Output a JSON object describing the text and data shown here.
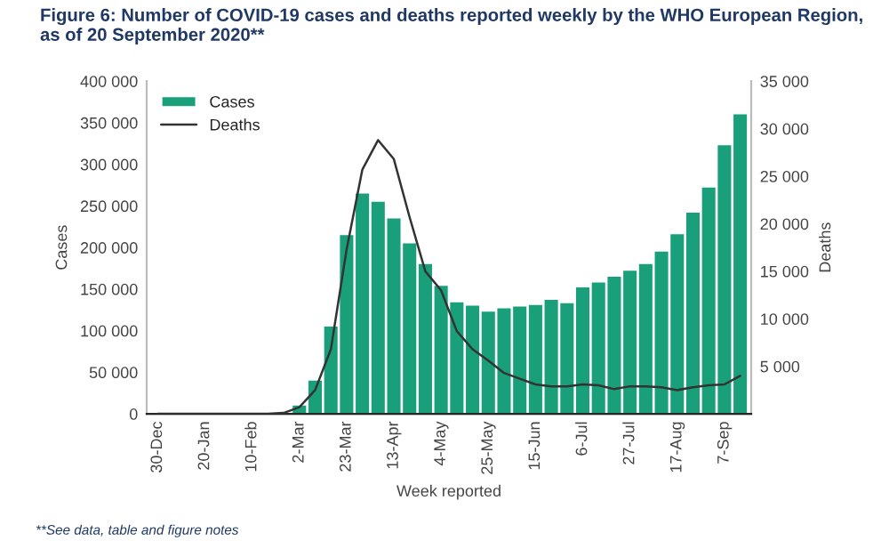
{
  "chart_data": {
    "type": "bar",
    "title": "Figure 6: Number of COVID-19 cases and deaths reported weekly by the WHO European Region, as of 20 September 2020**",
    "xlabel": "Week reported",
    "ylabel": "Cases",
    "y2label": "Deaths",
    "categories": [
      "30-Dec",
      null,
      null,
      "20-Jan",
      null,
      null,
      "10-Feb",
      null,
      null,
      "2-Mar",
      null,
      null,
      "23-Mar",
      null,
      null,
      "13-Apr",
      null,
      null,
      "4-May",
      null,
      null,
      "25-May",
      null,
      null,
      "15-Jun",
      null,
      null,
      "6-Jul",
      null,
      null,
      "27-Jul",
      null,
      null,
      "17-Aug",
      null,
      null,
      "7-Sep",
      null
    ],
    "series": [
      {
        "name": "Cases",
        "color": "#19a07a",
        "values": [
          0,
          0,
          0,
          0,
          0,
          0,
          0,
          0,
          1000,
          10000,
          40000,
          105000,
          215000,
          265000,
          255000,
          235000,
          205000,
          180000,
          154000,
          134000,
          130000,
          123000,
          127000,
          129000,
          131000,
          137000,
          133000,
          152000,
          158000,
          165000,
          172000,
          180000,
          195000,
          216000,
          242000,
          272000,
          323000,
          360000
        ]
      },
      {
        "name": "Deaths",
        "type": "line",
        "axis": "y2",
        "color": "#333333",
        "values": [
          0,
          0,
          0,
          0,
          0,
          0,
          0,
          0,
          100,
          700,
          2500,
          6800,
          17300,
          25700,
          28800,
          26800,
          20700,
          15000,
          13000,
          8700,
          6800,
          5600,
          4300,
          3700,
          3100,
          2900,
          2900,
          3100,
          3000,
          2600,
          2900,
          2900,
          2800,
          2500,
          2800,
          3000,
          3100,
          4000
        ]
      }
    ],
    "ylim": [
      0,
      400000
    ],
    "yticks": [
      {
        "value": 0,
        "label": "0"
      },
      {
        "value": 50000,
        "label": "50 000"
      },
      {
        "value": 100000,
        "label": "100 000"
      },
      {
        "value": 150000,
        "label": "150 000"
      },
      {
        "value": 200000,
        "label": "200 000"
      },
      {
        "value": 250000,
        "label": "250 000"
      },
      {
        "value": 300000,
        "label": "300 000"
      },
      {
        "value": 350000,
        "label": "350 000"
      },
      {
        "value": 400000,
        "label": "400 000"
      }
    ],
    "y2lim": [
      0,
      35000
    ],
    "y2ticks": [
      {
        "value": 5000,
        "label": "5 000"
      },
      {
        "value": 10000,
        "label": "10 000"
      },
      {
        "value": 15000,
        "label": "15 000"
      },
      {
        "value": 20000,
        "label": "20 000"
      },
      {
        "value": 25000,
        "label": "25 000"
      },
      {
        "value": 30000,
        "label": "30 000"
      },
      {
        "value": 35000,
        "label": "35 000"
      }
    ],
    "legend": "top left",
    "grid": false,
    "annotations": [
      "**See data, table and figure notes"
    ]
  }
}
